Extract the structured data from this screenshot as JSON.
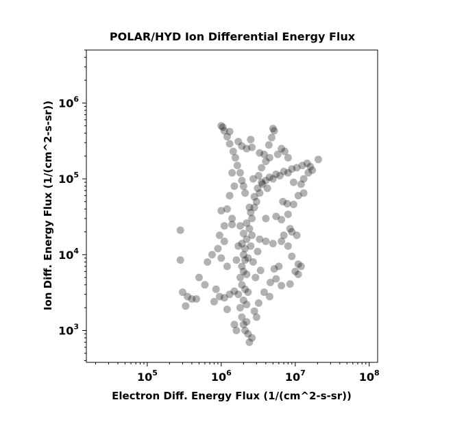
{
  "chart_data": {
    "type": "scatter",
    "title": "POLAR/HYD  Ion Differential Energy Flux",
    "xlabel": "Electron Diff. Energy Flux (1/(cm^2-s-sr))",
    "ylabel": "Ion Diff. Energy Flux (1/(cm^2-s-sr))",
    "xscale": "log",
    "yscale": "log",
    "xlim": [
      15000,
      130000000
    ],
    "ylim": [
      380,
      5000000
    ],
    "xticks": [
      {
        "base": "10",
        "exp": "5"
      },
      {
        "base": "10",
        "exp": "6"
      },
      {
        "base": "10",
        "exp": "7"
      },
      {
        "base": "10",
        "exp": "8"
      }
    ],
    "xtick_values": [
      100000,
      1000000,
      10000000,
      100000000
    ],
    "yticks": [
      {
        "base": "10",
        "exp": "3"
      },
      {
        "base": "10",
        "exp": "4"
      },
      {
        "base": "10",
        "exp": "5"
      },
      {
        "base": "10",
        "exp": "6"
      }
    ],
    "ytick_values": [
      1000,
      10000,
      100000,
      1000000
    ],
    "grid": false,
    "marker_color": "#000000",
    "marker_opacity": 0.3,
    "points": [
      [
        2000000.0,
        1200.0
      ],
      [
        2100000.0,
        1000.0
      ],
      [
        2300000.0,
        900.0
      ],
      [
        2400000.0,
        700.0
      ],
      [
        2600000.0,
        800.0
      ],
      [
        1900000.0,
        1500.0
      ],
      [
        2200000.0,
        1300.0
      ],
      [
        1800000.0,
        2000.0
      ],
      [
        2000000.0,
        2500.0
      ],
      [
        2200000.0,
        2200.0
      ],
      [
        1700000.0,
        3000.0
      ],
      [
        2100000.0,
        3500.0
      ],
      [
        1900000.0,
        4000.0
      ],
      [
        2300000.0,
        3200.0
      ],
      [
        1800000.0,
        5000.0
      ],
      [
        2000000.0,
        6000.0
      ],
      [
        2200000.0,
        5500.0
      ],
      [
        1900000.0,
        7000.0
      ],
      [
        2100000.0,
        8500.0
      ],
      [
        2000000.0,
        10000.0
      ],
      [
        2300000.0,
        9000.0
      ],
      [
        2100000.0,
        12000.0
      ],
      [
        1900000.0,
        14000.0
      ],
      [
        2200000.0,
        16000.0
      ],
      [
        2000000.0,
        19000.0
      ],
      [
        2400000.0,
        22000.0
      ],
      [
        2200000.0,
        26000.0
      ],
      [
        2600000.0,
        30000.0
      ],
      [
        2500000.0,
        36000.0
      ],
      [
        2800000.0,
        42000.0
      ],
      [
        3000000.0,
        50000.0
      ],
      [
        2800000.0,
        58000.0
      ],
      [
        3300000.0,
        65000.0
      ],
      [
        3100000.0,
        75000.0
      ],
      [
        3600000.0,
        85000.0
      ],
      [
        4000000.0,
        95000.0
      ],
      [
        4500000.0,
        105000.0
      ],
      [
        5000000.0,
        100000.0
      ],
      [
        5500000.0,
        115000.0
      ],
      [
        6200000.0,
        110000.0
      ],
      [
        7000000.0,
        125000.0
      ],
      [
        8000000.0,
        120000.0
      ],
      [
        9000000.0,
        135000.0
      ],
      [
        10500000.0,
        140000.0
      ],
      [
        12500000.0,
        150000.0
      ],
      [
        14500000.0,
        160000.0
      ],
      [
        16000000.0,
        145000.0
      ],
      [
        3500000.0,
        140000.0
      ],
      [
        4000000.0,
        170000.0
      ],
      [
        4500000.0,
        190000.0
      ],
      [
        3300000.0,
        220000.0
      ],
      [
        3800000.0,
        210000.0
      ],
      [
        5000000.0,
        460000.0
      ],
      [
        5200000.0,
        430000.0
      ],
      [
        4800000.0,
        350000.0
      ],
      [
        4400000.0,
        280000.0
      ],
      [
        2700000.0,
        100000.0
      ],
      [
        3200000.0,
        110000.0
      ],
      [
        3500000.0,
        90000.0
      ],
      [
        4200000.0,
        75000.0
      ],
      [
        1000000.0,
        500000.0
      ],
      [
        1050000.0,
        480000.0
      ],
      [
        1100000.0,
        430000.0
      ],
      [
        1200000.0,
        360000.0
      ],
      [
        1300000.0,
        290000.0
      ],
      [
        1450000.0,
        230000.0
      ],
      [
        1550000.0,
        190000.0
      ],
      [
        1650000.0,
        150000.0
      ],
      [
        1800000.0,
        120000.0
      ],
      [
        1900000.0,
        95000.0
      ],
      [
        2000000.0,
        80000.0
      ],
      [
        2100000.0,
        65000.0
      ],
      [
        1400000.0,
        120000.0
      ],
      [
        1500000.0,
        80000.0
      ],
      [
        1300000.0,
        60000.0
      ],
      [
        1200000.0,
        40000.0
      ],
      [
        1400000.0,
        30000.0
      ],
      [
        1100000.0,
        24000.0
      ],
      [
        1000000.0,
        38000.0
      ],
      [
        950000.0,
        18000.0
      ],
      [
        1100000.0,
        15000.0
      ],
      [
        900000.0,
        12000.0
      ],
      [
        1000000.0,
        9000.0
      ],
      [
        1200000.0,
        7000.0
      ],
      [
        1400000.0,
        25000.0
      ],
      [
        280000.0,
        21000.0
      ],
      [
        280000.0,
        8500.0
      ],
      [
        330000.0,
        2100.0
      ],
      [
        300000.0,
        3200.0
      ],
      [
        350000.0,
        2800.0
      ],
      [
        400000.0,
        2600.0
      ],
      [
        460000.0,
        2600.0
      ],
      [
        500000.0,
        5000.0
      ],
      [
        600000.0,
        4000.0
      ],
      [
        650000.0,
        8000.0
      ],
      [
        750000.0,
        10000.0
      ],
      [
        850000.0,
        3500.0
      ],
      [
        950000.0,
        2800.0
      ],
      [
        1100000.0,
        2700.0
      ],
      [
        1300000.0,
        3000.0
      ],
      [
        1500000.0,
        3300.0
      ],
      [
        800000.0,
        2400.0
      ],
      [
        1200000.0,
        1900.0
      ],
      [
        1500000.0,
        1200.0
      ],
      [
        1600000.0,
        1000.0
      ],
      [
        2800000.0,
        1800.0
      ],
      [
        3200000.0,
        2300.0
      ],
      [
        3000000.0,
        1500.0
      ],
      [
        4500000.0,
        2800.0
      ],
      [
        3800000.0,
        3200.0
      ],
      [
        4600000.0,
        4300.0
      ],
      [
        5500000.0,
        4800.0
      ],
      [
        6500000.0,
        3900.0
      ],
      [
        5200000.0,
        6500.0
      ],
      [
        6000000.0,
        7000.0
      ],
      [
        3400000.0,
        6200.0
      ],
      [
        2900000.0,
        5000.0
      ],
      [
        2700000.0,
        8000.0
      ],
      [
        3100000.0,
        11000.0
      ],
      [
        3300000.0,
        16000.0
      ],
      [
        4000000.0,
        15000.0
      ],
      [
        5000000.0,
        14000.0
      ],
      [
        6500000.0,
        15000.0
      ],
      [
        7000000.0,
        18000.0
      ],
      [
        8000000.0,
        13000.0
      ],
      [
        9000000.0,
        9500.0
      ],
      [
        11000000.0,
        7500.0
      ],
      [
        10000000.0,
        6000.0
      ],
      [
        12000000.0,
        7000.0
      ],
      [
        11000000.0,
        5500.0
      ],
      [
        8500000.0,
        4100.0
      ],
      [
        4000000.0,
        30000.0
      ],
      [
        5500000.0,
        32000.0
      ],
      [
        6500000.0,
        29000.0
      ],
      [
        8000000.0,
        34000.0
      ],
      [
        6800000.0,
        50000.0
      ],
      [
        7800000.0,
        47000.0
      ],
      [
        9500000.0,
        46000.0
      ],
      [
        11000000.0,
        60000.0
      ],
      [
        12000000.0,
        85000.0
      ],
      [
        13000000.0,
        65000.0
      ],
      [
        9000000.0,
        20000.0
      ],
      [
        8500000.0,
        22000.0
      ],
      [
        10500000.0,
        18000.0
      ],
      [
        5800000.0,
        210000.0
      ],
      [
        6500000.0,
        250000.0
      ],
      [
        7200000.0,
        230000.0
      ],
      [
        8000000.0,
        190000.0
      ],
      [
        20500000.0,
        180000.0
      ],
      [
        17000000.0,
        130000.0
      ],
      [
        15000000.0,
        120000.0
      ],
      [
        13000000.0,
        100000.0
      ],
      [
        9500000.0,
        90000.0
      ],
      [
        2500000.0,
        330000.0
      ],
      [
        2600000.0,
        260000.0
      ],
      [
        1900000.0,
        270000.0
      ],
      [
        2200000.0,
        250000.0
      ],
      [
        1700000.0,
        310000.0
      ],
      [
        1300000.0,
        420000.0
      ],
      [
        2400000.0,
        42000.0
      ],
      [
        2600000.0,
        18000.0
      ],
      [
        2500000.0,
        13000.0
      ],
      [
        1700000.0,
        13000.0
      ],
      [
        1600000.0,
        8500.0
      ],
      [
        1800000.0,
        24000.0
      ]
    ]
  }
}
